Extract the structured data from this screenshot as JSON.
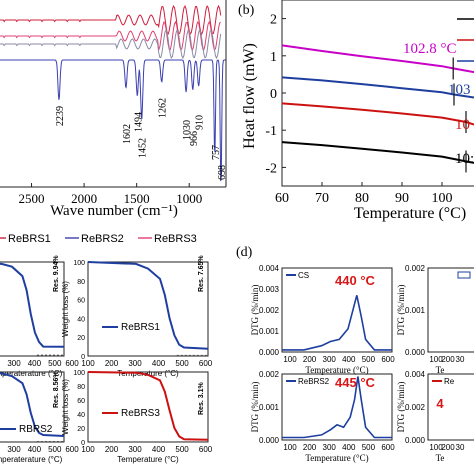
{
  "chart_data": [
    {
      "panel": "",
      "type": "line",
      "xlabel": "Wave number (cm⁻¹)",
      "x_ticks": [
        2500,
        2000,
        1500,
        1000
      ],
      "xlim": [
        2800,
        650
      ],
      "reversed_x": true,
      "series": [
        {
          "name": "",
          "color": "#d01f3b"
        },
        {
          "name": "",
          "color": "#e04070"
        },
        {
          "name": "",
          "color": "#8a8aa6"
        },
        {
          "name": "",
          "color": "#3b3fb0",
          "x": [
            2800,
            2600,
            2400,
            2239,
            2100,
            1800,
            1602,
            1494,
            1452,
            1262,
            1030,
            966,
            910,
            757,
            698,
            650
          ]
        }
      ],
      "annotations": [
        "2239",
        "1602",
        "1494",
        "1452",
        "1262",
        "1030",
        "966",
        "910",
        "757",
        "698"
      ],
      "legend": [
        {
          "name": "ReBRS1",
          "color": "#d01f3b"
        },
        {
          "name": "ReBRS2",
          "color": "#3b3fb0"
        },
        {
          "name": "ReBRS3",
          "color": "#e04070"
        }
      ]
    },
    {
      "panel": "(b)",
      "type": "line",
      "xlabel": "Temperature (°C)",
      "ylabel": "Heat flow (mW)",
      "xlim": [
        60,
        110
      ],
      "ylim": [
        -2.5,
        2.5
      ],
      "x_ticks": [
        60,
        70,
        80,
        90,
        100
      ],
      "y_ticks": [
        2,
        1,
        0,
        -1,
        -2
      ],
      "series": [
        {
          "name": "",
          "color": "#c800c8",
          "x": [
            60,
            70,
            80,
            90,
            100,
            102.8,
            108
          ],
          "y": [
            1.28,
            1.13,
            0.99,
            0.86,
            0.72,
            0.66,
            0.56
          ]
        },
        {
          "name": "",
          "color": "#1e3fa0",
          "x": [
            60,
            70,
            80,
            90,
            100,
            103,
            108
          ],
          "y": [
            0.42,
            0.34,
            0.24,
            0.13,
            0.02,
            -0.04,
            -0.12
          ]
        },
        {
          "name": "",
          "color": "#cc1111",
          "x": [
            60,
            70,
            80,
            90,
            100,
            106,
            108
          ],
          "y": [
            -0.28,
            -0.36,
            -0.45,
            -0.55,
            -0.66,
            -0.78,
            -0.85
          ]
        },
        {
          "name": "",
          "color": "#000000",
          "x": [
            60,
            70,
            80,
            90,
            100,
            106,
            108
          ],
          "y": [
            -1.32,
            -1.4,
            -1.5,
            -1.6,
            -1.71,
            -1.84,
            -1.88
          ]
        }
      ],
      "annotations": [
        {
          "text": "102.8 °C",
          "color": "#c800c8"
        },
        {
          "text": "103",
          "color": "#1e3fa0"
        },
        {
          "text": "10",
          "color": "#cc1111"
        },
        {
          "text": "10:",
          "color": "#000000"
        }
      ]
    },
    {
      "panel": "",
      "type": "line",
      "subplots": [
        {
          "name": "",
          "color": "#1e3fa0",
          "xlabel": "Temperature (°C)",
          "x_ticks": [
            "00",
            "200",
            "300",
            "400",
            "500",
            "600"
          ],
          "residue": "Res. 9.94%",
          "x": [
            100,
            300,
            350,
            400,
            420,
            440,
            460,
            480,
            500,
            600
          ],
          "y": [
            100,
            98,
            95,
            85,
            70,
            45,
            25,
            15,
            10,
            9.94
          ]
        },
        {
          "name": "ReBRS1",
          "color": "#1e3fa0",
          "xlabel": "Temperature (°C)",
          "ylabel": "Weight loss (%)",
          "y_ticks": [
            "100",
            "80",
            "60",
            "40",
            "20",
            "0"
          ],
          "x_ticks": [
            "100",
            "200",
            "300",
            "400",
            "500",
            "600"
          ],
          "residue": "Res. 7.65%",
          "x": [
            100,
            300,
            350,
            400,
            420,
            440,
            460,
            480,
            500,
            600
          ],
          "y": [
            100,
            98,
            93,
            82,
            65,
            40,
            22,
            12,
            9,
            7.65
          ]
        },
        {
          "name": "RBRS2",
          "color": "#1e3fa0",
          "xlabel": "Temperature (°C)",
          "x_ticks": [
            "00",
            "200",
            "300",
            "400",
            "500",
            "600"
          ],
          "residue": "Res. 8.56%",
          "x": [
            100,
            300,
            350,
            400,
            420,
            440,
            460,
            480,
            500,
            600
          ],
          "y": [
            100,
            98,
            94,
            84,
            68,
            42,
            22,
            13,
            10,
            8.56
          ]
        },
        {
          "name": "ReBRS3",
          "color": "#cc1111",
          "xlabel": "Temperature (°C)",
          "ylabel": "Weight loss (%)",
          "y_ticks": [
            "100",
            "80",
            "60",
            "40",
            "20",
            "0"
          ],
          "x_ticks": [
            "100",
            "200",
            "300",
            "400",
            "500",
            "600"
          ],
          "residue": "Res. 3.1%",
          "x": [
            100,
            300,
            350,
            400,
            420,
            440,
            460,
            480,
            500,
            600
          ],
          "y": [
            100,
            99,
            96,
            88,
            72,
            45,
            20,
            8,
            4,
            3.1
          ]
        }
      ]
    },
    {
      "panel": "(d)",
      "type": "line",
      "subplots": [
        {
          "name": "CS",
          "color": "#1e3fa0",
          "peak": "440 °C",
          "ylabel": "DTG (%/min)",
          "xlabel": "Temperature (°C)",
          "y_ticks": [
            "0.004",
            "0.003",
            "0.002",
            "0.001",
            "0.000"
          ],
          "x_ticks": [
            "100",
            "200",
            "300",
            "400",
            "500",
            "600"
          ],
          "x": [
            100,
            200,
            280,
            320,
            360,
            400,
            420,
            440,
            460,
            480,
            520,
            600
          ],
          "y": [
            0.0001,
            0.0001,
            0.0003,
            0.0005,
            0.0006,
            0.0011,
            0.0019,
            0.0027,
            0.0017,
            0.0006,
            0.0001,
            0.0001
          ]
        },
        {
          "name": "",
          "color": "#1e3fa0",
          "ylabel": "DTG (%/min)",
          "xlabel": "Te",
          "y_ticks": [
            "0.002",
            "0.001",
            "0.000"
          ],
          "x_ticks": [
            "100",
            "200",
            "30"
          ]
        },
        {
          "name": "ReBRS2",
          "color": "#1e3fa0",
          "peak": "445 °C",
          "ylabel": "DTG (%/min)",
          "xlabel": "Temperature (°C)",
          "y_ticks": [
            "0.002",
            "0.001",
            "0.000"
          ],
          "x_ticks": [
            "100",
            "200",
            "300",
            "400",
            "500",
            "600"
          ],
          "x": [
            100,
            200,
            280,
            320,
            350,
            380,
            410,
            430,
            445,
            460,
            480,
            520,
            600
          ],
          "y": [
            0.0001,
            0.0001,
            0.0002,
            0.0004,
            0.0006,
            0.0005,
            0.0009,
            0.0016,
            0.0025,
            0.0016,
            0.0005,
            0.0001,
            0.0001
          ]
        },
        {
          "name": "Re",
          "color": "#cc1111",
          "peak": "4",
          "ylabel": "DTG (%/min)",
          "xlabel": "Te",
          "y_ticks": [
            "0.004",
            "0.002",
            "0.000"
          ],
          "x_ticks": [
            "100",
            "200",
            "30"
          ]
        }
      ]
    }
  ]
}
